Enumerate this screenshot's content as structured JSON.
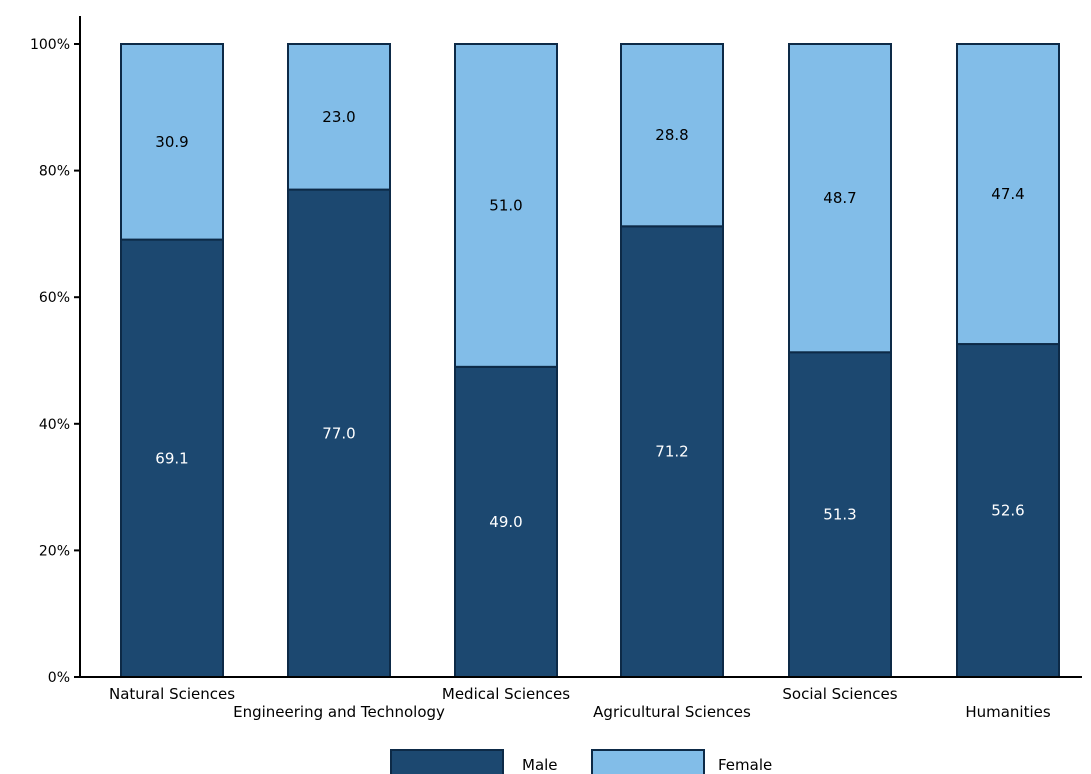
{
  "chart_data": {
    "type": "bar",
    "stacked": "percent",
    "title": "",
    "xlabel": "",
    "ylabel": "",
    "ylim": [
      0,
      100
    ],
    "yticks": [
      "0%",
      "20%",
      "40%",
      "60%",
      "80%",
      "100%"
    ],
    "categories": [
      "Natural Sciences",
      "Engineering and Technology",
      "Medical Sciences",
      "Agricultural Sciences",
      "Social Sciences",
      "Humanities"
    ],
    "series": [
      {
        "name": "Male",
        "color": "#1c4870",
        "label_color": "#ffffff",
        "values": [
          69.1,
          77.0,
          49.0,
          71.2,
          51.3,
          52.6
        ]
      },
      {
        "name": "Female",
        "color": "#82bde8",
        "label_color": "#000000",
        "values": [
          30.9,
          23.0,
          51.0,
          28.8,
          48.7,
          47.4
        ]
      }
    ],
    "data_labels": [
      [
        "69.1",
        "77.0",
        "49.0",
        "71.2",
        "51.3",
        "52.6"
      ],
      [
        "30.9",
        "23.0",
        "51.0",
        "28.8",
        "48.7",
        "47.4"
      ]
    ],
    "legend_position": "bottom",
    "grid": false,
    "outline_color": "#0d2a47"
  }
}
